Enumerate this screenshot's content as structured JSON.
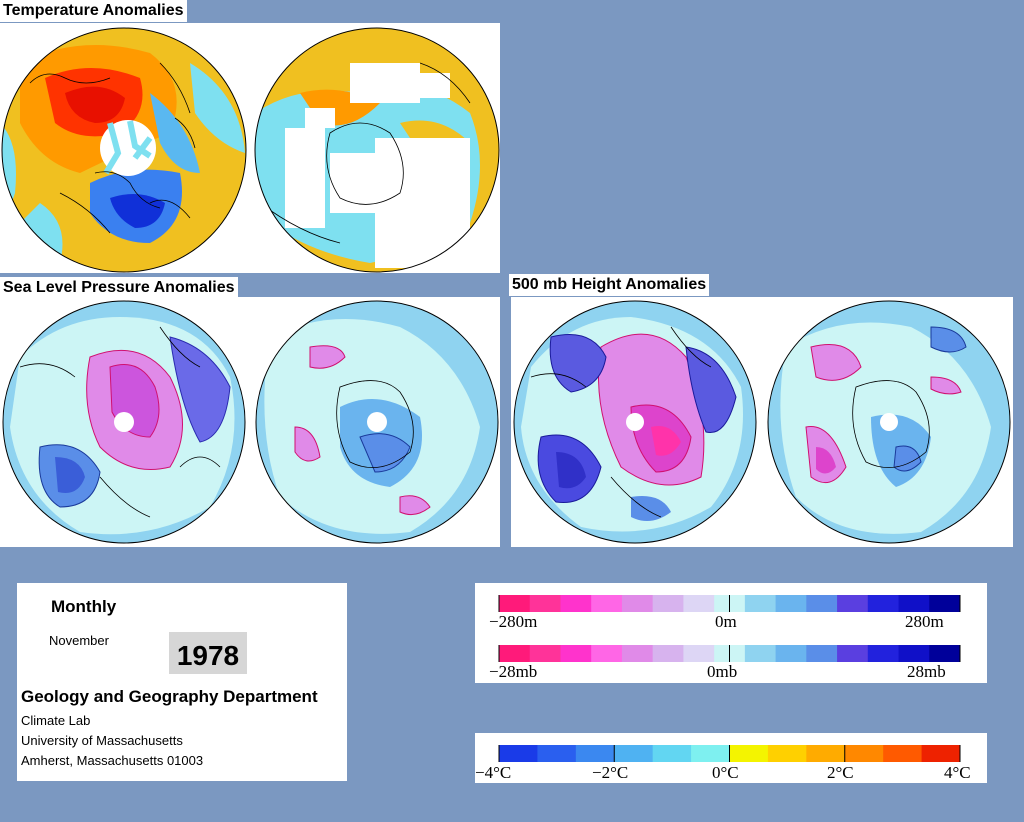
{
  "titles": {
    "temperature": "Temperature Anomalies",
    "slp": "Sea Level Pressure Anomalies",
    "height": "500 mb Height Anomalies"
  },
  "info": {
    "interval": "Monthly",
    "month": "November",
    "year": "1978",
    "department": "Geology and Geography Department",
    "lines": [
      "Climate Lab",
      "University of Massachusetts",
      "Amherst, Massachusetts 01003"
    ]
  },
  "legends": {
    "height_labels": [
      "−280m",
      "0m",
      "280m"
    ],
    "pressure_labels": [
      "−28mb",
      "0mb",
      "28mb"
    ],
    "temperature_labels": [
      "−4°C",
      "−2°C",
      "0°C",
      "2°C",
      "4°C"
    ],
    "anomaly_colors": [
      "#ff1a7a",
      "#ff3399",
      "#ff33cc",
      "#ff66e6",
      "#e08ae8",
      "#d7b3ee",
      "#ddd6f5",
      "#ccf5f5",
      "#8fd3f0",
      "#6ab4ee",
      "#5a8ee8",
      "#5a3fe0",
      "#2222dd",
      "#1010c8",
      "#00009a"
    ],
    "temperature_colors": [
      "#1a3be8",
      "#2a5fef",
      "#3b88f0",
      "#4fb2f2",
      "#62d6f2",
      "#7ef0f0",
      "#f4f400",
      "#ffd000",
      "#ffab00",
      "#ff8800",
      "#ff5a00",
      "#ee2200"
    ]
  }
}
